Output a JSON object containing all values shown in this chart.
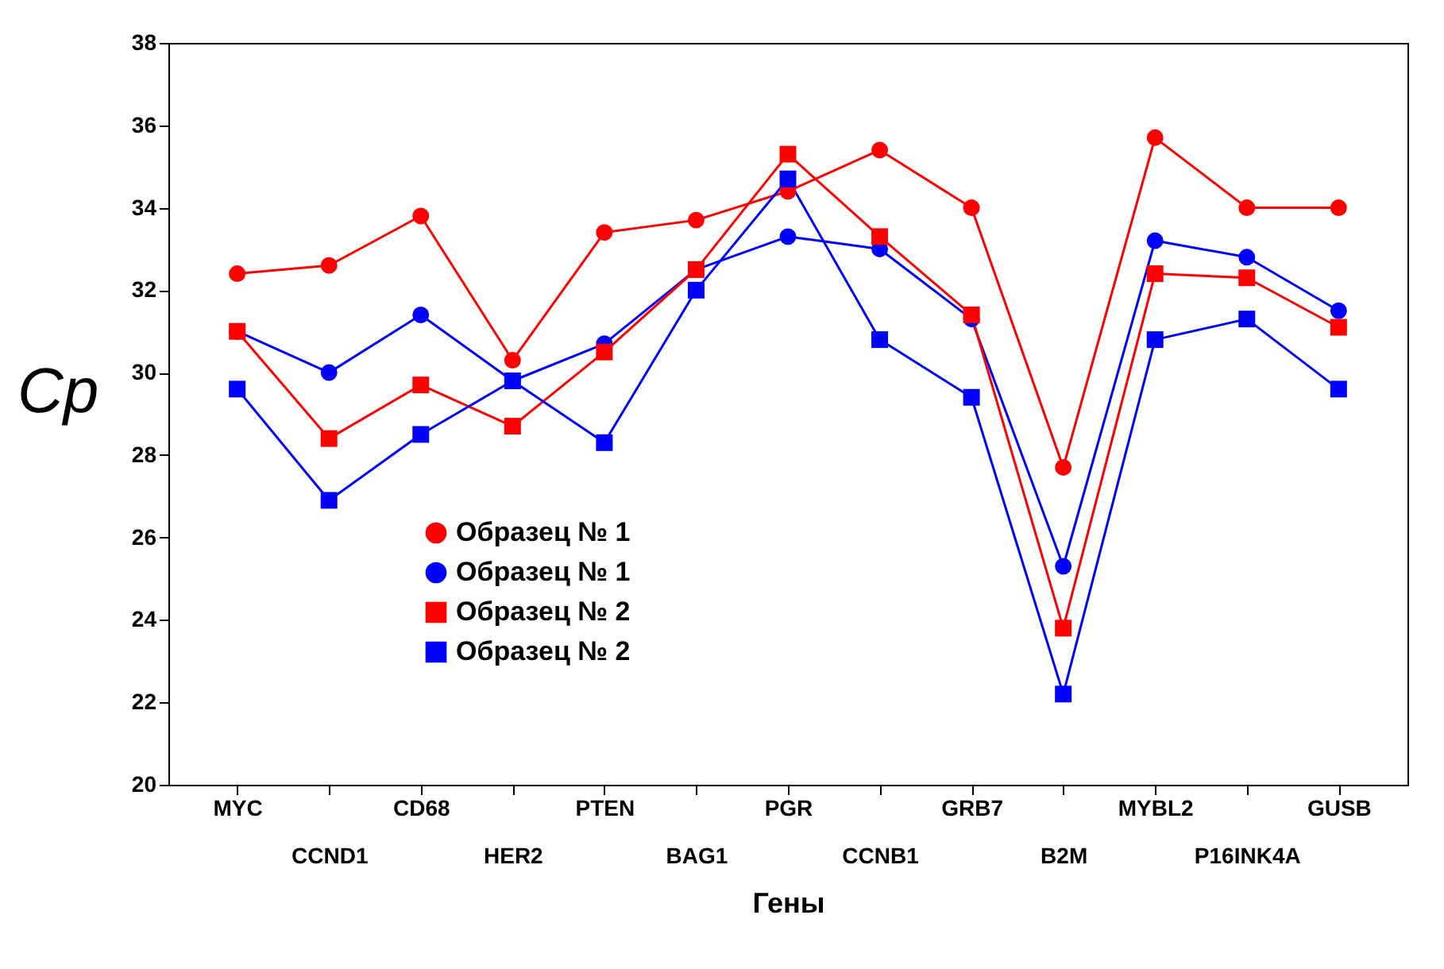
{
  "chart_data": {
    "type": "line",
    "xlabel": "Гены",
    "ylabel": "Cp",
    "categories": [
      "MYC",
      "CCND1",
      "CD68",
      "HER2",
      "PTEN",
      "BAG1",
      "PGR",
      "CCNB1",
      "GRB7",
      "B2M",
      "MYBL2",
      "P16INK4A",
      "GUSB"
    ],
    "series": [
      {
        "name": "Образец № 1",
        "color": "#ff0000",
        "marker": "circle",
        "values": [
          32.4,
          32.6,
          33.8,
          30.3,
          33.4,
          33.7,
          34.4,
          35.4,
          34.0,
          27.7,
          35.7,
          34.0,
          34.0
        ]
      },
      {
        "name": "Образец № 1",
        "color": "#0000ff",
        "marker": "circle",
        "values": [
          31.0,
          30.0,
          31.4,
          29.8,
          30.7,
          32.5,
          33.3,
          33.0,
          31.3,
          25.3,
          33.2,
          32.8,
          31.5
        ]
      },
      {
        "name": "Образец № 2",
        "color": "#ff0000",
        "marker": "square",
        "values": [
          31.0,
          28.4,
          29.7,
          28.7,
          30.5,
          32.5,
          35.3,
          33.3,
          31.4,
          23.8,
          32.4,
          32.3,
          31.1
        ]
      },
      {
        "name": "Образец № 2",
        "color": "#0000ff",
        "marker": "square",
        "values": [
          29.6,
          26.9,
          28.5,
          29.8,
          28.3,
          32.0,
          34.7,
          30.8,
          29.4,
          22.2,
          30.8,
          31.3,
          29.6
        ]
      }
    ],
    "ylim": [
      20,
      38
    ],
    "yticks": [
      20,
      22,
      24,
      26,
      28,
      30,
      32,
      34,
      36,
      38
    ],
    "grid": false,
    "legend": "bottom",
    "line_style": "solid"
  }
}
